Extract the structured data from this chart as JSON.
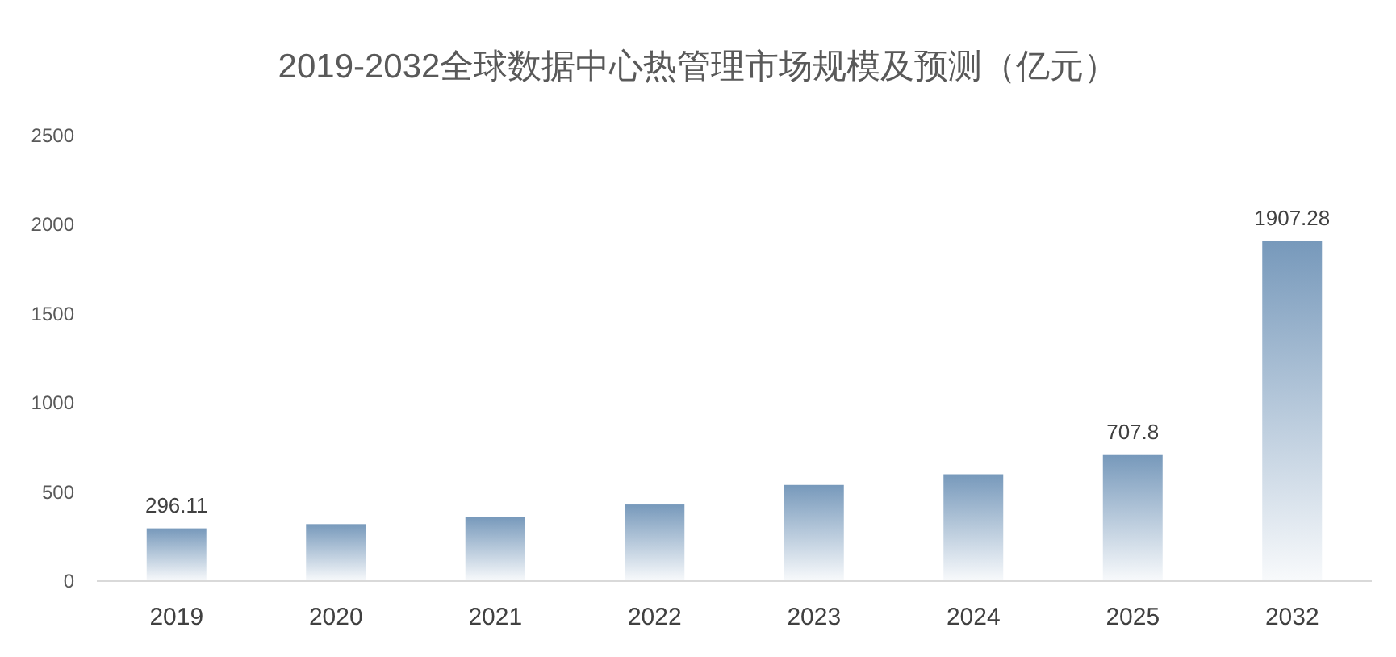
{
  "chart_data": {
    "type": "bar",
    "title": "2019-2032全球数据中心热管理市场规模及预测（亿元）",
    "categories": [
      "2019",
      "2020",
      "2021",
      "2022",
      "2023",
      "2024",
      "2025",
      "2032"
    ],
    "values": [
      296.11,
      320,
      360,
      430,
      540,
      600,
      707.8,
      1907.28
    ],
    "value_labels": [
      "296.11",
      null,
      null,
      null,
      null,
      null,
      "707.8",
      "1907.28"
    ],
    "color": "#7799bb",
    "ylim": [
      0,
      2500
    ],
    "yticks": [
      0,
      500,
      1000,
      1500,
      2000,
      2500
    ],
    "grid": false
  }
}
